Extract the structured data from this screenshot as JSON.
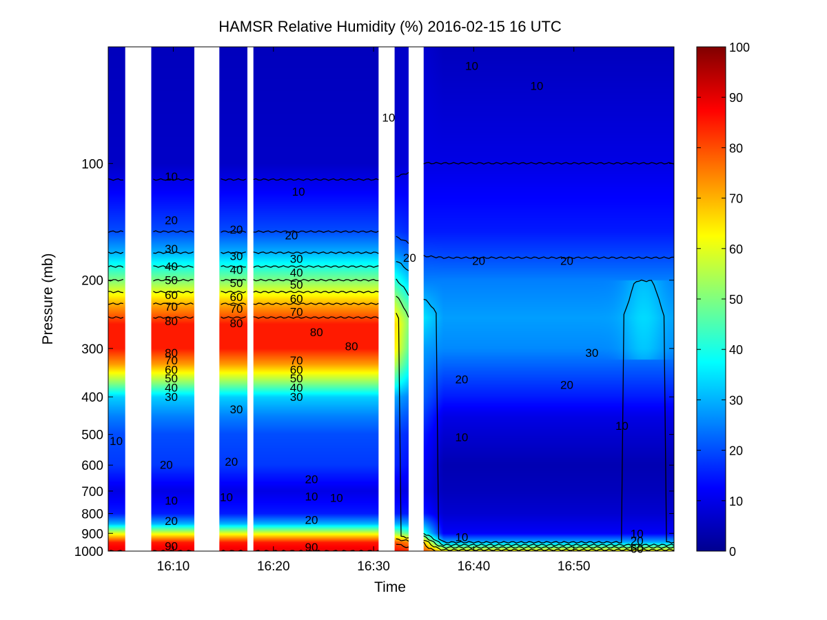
{
  "chart_data": {
    "type": "heatmap",
    "title": "HAMSR  Relative Humidity (%) 2016-02-15 16 UTC",
    "xlabel": "Time",
    "ylabel": "Pressure (mb)",
    "x_range_min": [
      3.5,
      60
    ],
    "x_ticks": [
      {
        "min": 10,
        "label": "16:10"
      },
      {
        "min": 20,
        "label": "16:20"
      },
      {
        "min": 30,
        "label": "16:30"
      },
      {
        "min": 40,
        "label": "16:40"
      },
      {
        "min": 50,
        "label": "16:50"
      }
    ],
    "y_scale": "log",
    "y_range": [
      1000,
      50
    ],
    "y_ticks": [
      100,
      200,
      300,
      400,
      500,
      600,
      700,
      800,
      900,
      1000
    ],
    "colorbar": {
      "min": 0,
      "max": 100,
      "ticks": [
        0,
        10,
        20,
        30,
        40,
        50,
        60,
        70,
        80,
        90,
        100
      ],
      "colormap": "jet"
    },
    "data_gaps_min": [
      [
        5.2,
        7.8
      ],
      [
        12.1,
        14.6
      ],
      [
        17.4,
        18.0
      ],
      [
        30.5,
        32.1
      ],
      [
        33.5,
        35.0
      ]
    ],
    "profiles": {
      "early": {
        "p": [
          50,
          100,
          110,
          150,
          170,
          200,
          230,
          260,
          300,
          330,
          370,
          400,
          450,
          500,
          600,
          700,
          800,
          850,
          900,
          950,
          1000
        ],
        "rh": [
          6,
          7,
          10,
          20,
          30,
          50,
          70,
          85,
          85,
          72,
          50,
          33,
          25,
          20,
          18,
          10,
          15,
          30,
          60,
          85,
          90
        ]
      },
      "transition": {
        "p": [
          50,
          100,
          150,
          200,
          250,
          300,
          400,
          500,
          600,
          700,
          800,
          900,
          950,
          1000
        ],
        "rh": [
          8,
          10,
          15,
          25,
          35,
          28,
          22,
          15,
          12,
          10,
          15,
          40,
          70,
          80
        ]
      },
      "late": {
        "p": [
          50,
          100,
          150,
          175,
          200,
          250,
          300,
          350,
          400,
          450,
          500,
          600,
          700,
          800,
          900,
          950,
          1000
        ],
        "rh": [
          6,
          10,
          15,
          20,
          25,
          28,
          26,
          20,
          15,
          10,
          8,
          5,
          6,
          8,
          12,
          30,
          65
        ]
      }
    },
    "contour_levels": [
      10,
      20,
      30,
      40,
      50,
      60,
      70,
      80,
      90
    ],
    "contour_labels": [
      {
        "text": "10",
        "t": 9.8,
        "p": 108
      },
      {
        "text": "10",
        "t": 22.5,
        "p": 118
      },
      {
        "text": "10",
        "t": 31.5,
        "p": 76
      },
      {
        "text": "10",
        "t": 39.8,
        "p": 56
      },
      {
        "text": "10",
        "t": 46.3,
        "p": 63
      },
      {
        "text": "20",
        "t": 9.8,
        "p": 140
      },
      {
        "text": "20",
        "t": 16.3,
        "p": 148
      },
      {
        "text": "20",
        "t": 21.8,
        "p": 153
      },
      {
        "text": "20",
        "t": 33.6,
        "p": 175
      },
      {
        "text": "20",
        "t": 40.5,
        "p": 178
      },
      {
        "text": "20",
        "t": 49.3,
        "p": 178
      },
      {
        "text": "30",
        "t": 9.8,
        "p": 166
      },
      {
        "text": "30",
        "t": 16.3,
        "p": 173
      },
      {
        "text": "30",
        "t": 22.3,
        "p": 176
      },
      {
        "text": "40",
        "t": 9.8,
        "p": 184
      },
      {
        "text": "40",
        "t": 16.3,
        "p": 188
      },
      {
        "text": "40",
        "t": 22.3,
        "p": 191
      },
      {
        "text": "50",
        "t": 9.8,
        "p": 200
      },
      {
        "text": "50",
        "t": 16.3,
        "p": 203
      },
      {
        "text": "50",
        "t": 22.3,
        "p": 205
      },
      {
        "text": "60",
        "t": 9.8,
        "p": 218
      },
      {
        "text": "60",
        "t": 16.3,
        "p": 221
      },
      {
        "text": "60",
        "t": 22.3,
        "p": 223
      },
      {
        "text": "70",
        "t": 9.8,
        "p": 234
      },
      {
        "text": "70",
        "t": 16.3,
        "p": 237
      },
      {
        "text": "70",
        "t": 22.3,
        "p": 241
      },
      {
        "text": "80",
        "t": 9.8,
        "p": 255
      },
      {
        "text": "80",
        "t": 16.3,
        "p": 258
      },
      {
        "text": "80",
        "t": 24.3,
        "p": 272
      },
      {
        "text": "80",
        "t": 27.8,
        "p": 296
      },
      {
        "text": "80",
        "t": 9.8,
        "p": 308
      },
      {
        "text": "70",
        "t": 9.8,
        "p": 322
      },
      {
        "text": "60",
        "t": 9.8,
        "p": 340
      },
      {
        "text": "50",
        "t": 9.8,
        "p": 358
      },
      {
        "text": "40",
        "t": 9.8,
        "p": 378
      },
      {
        "text": "30",
        "t": 9.8,
        "p": 400
      },
      {
        "text": "70",
        "t": 22.3,
        "p": 322
      },
      {
        "text": "60",
        "t": 22.3,
        "p": 340
      },
      {
        "text": "50",
        "t": 22.3,
        "p": 358
      },
      {
        "text": "40",
        "t": 22.3,
        "p": 378
      },
      {
        "text": "30",
        "t": 22.3,
        "p": 400
      },
      {
        "text": "30",
        "t": 16.3,
        "p": 430
      },
      {
        "text": "30",
        "t": 51.8,
        "p": 308
      },
      {
        "text": "20",
        "t": 38.8,
        "p": 360
      },
      {
        "text": "20",
        "t": 49.3,
        "p": 372
      },
      {
        "text": "10",
        "t": 38.8,
        "p": 508
      },
      {
        "text": "10",
        "t": 54.8,
        "p": 475
      },
      {
        "text": "20",
        "t": 9.3,
        "p": 598
      },
      {
        "text": "20",
        "t": 15.8,
        "p": 588
      },
      {
        "text": "20",
        "t": 23.8,
        "p": 652
      },
      {
        "text": "10",
        "t": 4.3,
        "p": 520
      },
      {
        "text": "10",
        "t": 9.8,
        "p": 740
      },
      {
        "text": "10",
        "t": 15.3,
        "p": 725
      },
      {
        "text": "10",
        "t": 23.8,
        "p": 722
      },
      {
        "text": "10",
        "t": 26.3,
        "p": 728
      },
      {
        "text": "20",
        "t": 9.8,
        "p": 835
      },
      {
        "text": "20",
        "t": 23.8,
        "p": 830
      },
      {
        "text": "90",
        "t": 9.8,
        "p": 970
      },
      {
        "text": "90",
        "t": 23.8,
        "p": 975
      },
      {
        "text": "10",
        "t": 38.8,
        "p": 920
      },
      {
        "text": "10",
        "t": 56.3,
        "p": 900
      },
      {
        "text": "20",
        "t": 56.3,
        "p": 940
      },
      {
        "text": "60",
        "t": 56.3,
        "p": 985
      }
    ]
  }
}
